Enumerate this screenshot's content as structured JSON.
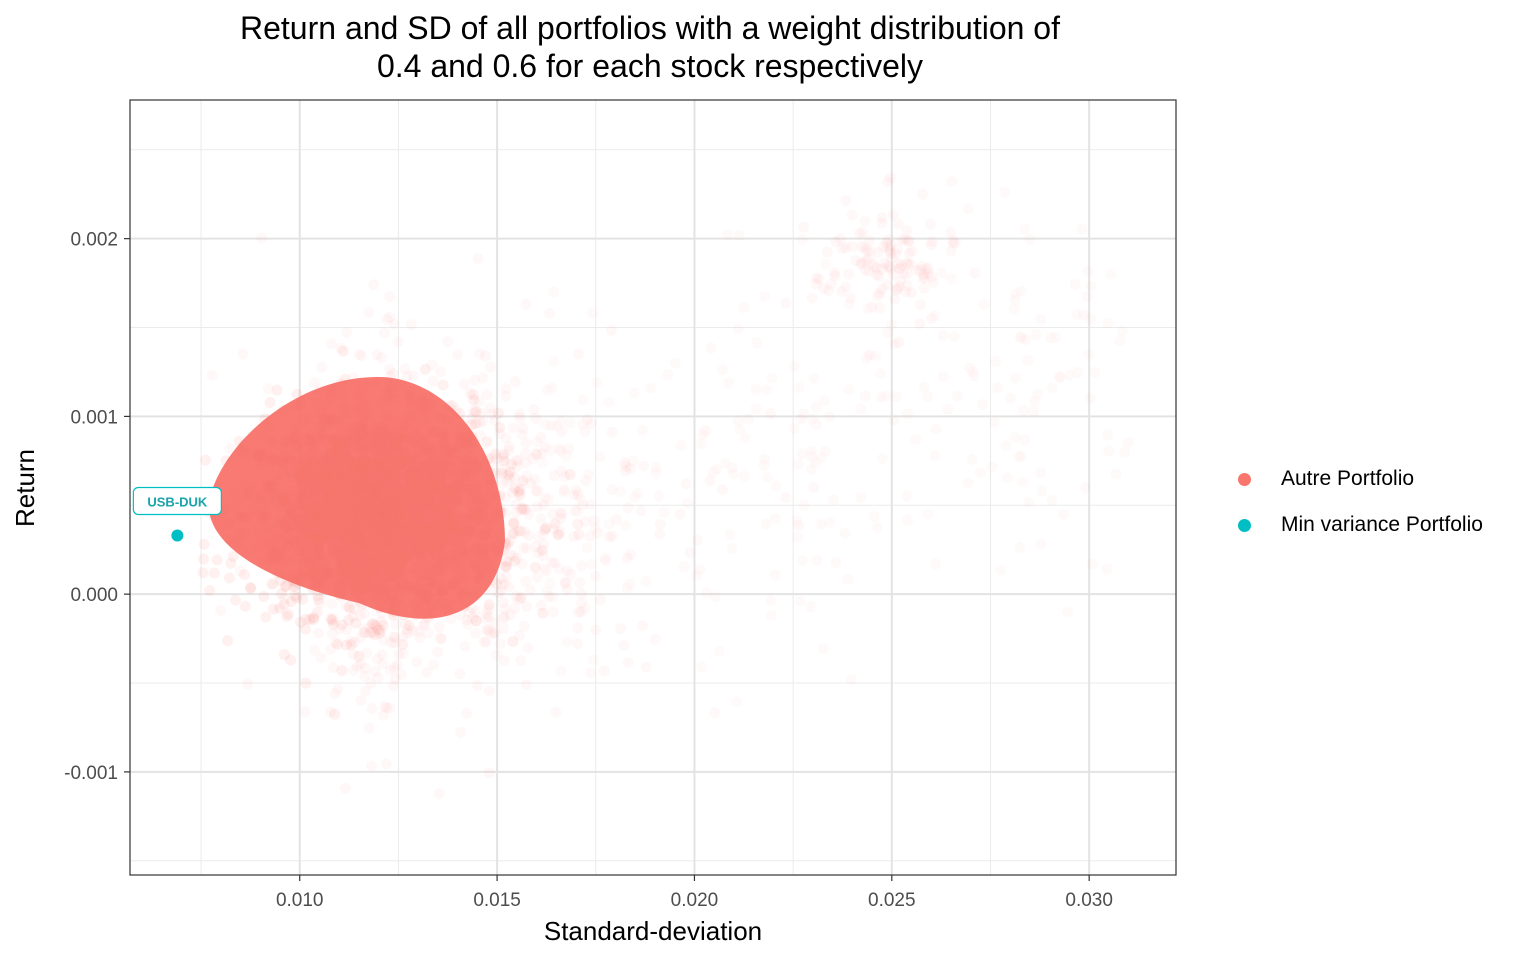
{
  "chart_data": {
    "type": "scatter",
    "title_lines": [
      "Return and SD of all portfolios with a weight distribution of",
      "0.4 and 0.6 for each stock respectively"
    ],
    "xlabel": "Standard-deviation",
    "ylabel": "Return",
    "xlim": [
      0.0057,
      0.0322
    ],
    "ylim": [
      -0.00158,
      0.00278
    ],
    "x_ticks": [
      0.01,
      0.015,
      0.02,
      0.025,
      0.03
    ],
    "x_tick_labels": [
      "0.010",
      "0.015",
      "0.020",
      "0.025",
      "0.030"
    ],
    "y_ticks": [
      -0.001,
      0.0,
      0.001,
      0.002
    ],
    "y_tick_labels": [
      "-0.001",
      "0.000",
      "0.001",
      "0.002"
    ],
    "grid": true,
    "legend_position": "right",
    "series": [
      {
        "name": "Autre Portfolio",
        "color": "#F8766D",
        "description_values": {
          "dense_cloud_center": [
            0.0118,
            0.00045
          ],
          "sd_range": [
            0.0075,
            0.031
          ],
          "return_range": [
            -0.0013,
            0.0024
          ],
          "secondary_cluster_center": [
            0.0248,
            0.00185
          ]
        }
      },
      {
        "name": "Min variance Portfolio",
        "color": "#00BFC4",
        "points": [
          {
            "x": 0.0069,
            "y": 0.00033,
            "label": "USB-DUK"
          }
        ]
      }
    ]
  }
}
